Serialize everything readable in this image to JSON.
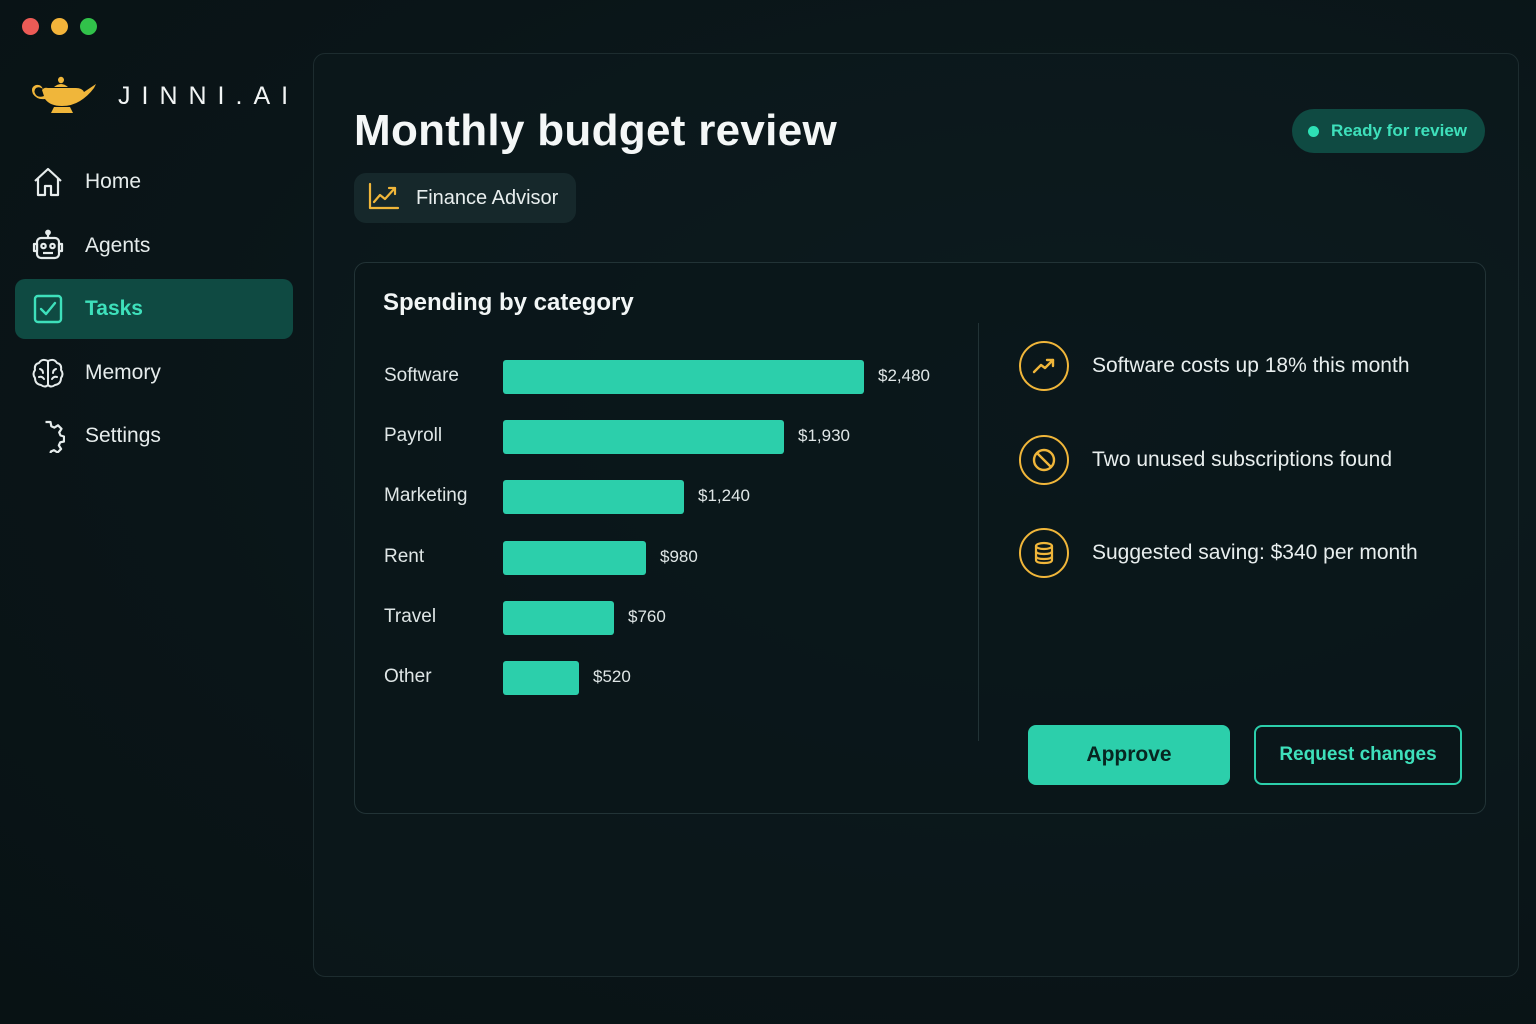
{
  "app": {
    "brand": "JINNI.AI",
    "logo_icon": "magic-lamp-icon",
    "accent_color": "#2ccfab",
    "highlight_color": "#f0b63a"
  },
  "sidebar": {
    "items": [
      {
        "label": "Home",
        "icon": "home-icon",
        "active": false
      },
      {
        "label": "Agents",
        "icon": "robot-icon",
        "active": false
      },
      {
        "label": "Tasks",
        "icon": "checkbox-icon",
        "active": true
      },
      {
        "label": "Memory",
        "icon": "brain-icon",
        "active": false
      },
      {
        "label": "Settings",
        "icon": "gear-icon",
        "active": false
      }
    ]
  },
  "main": {
    "title": "Monthly budget review",
    "agent": {
      "label": "Finance Advisor",
      "icon": "trending-chart-icon"
    },
    "status": {
      "label": "Ready for review",
      "color": "#2ee0b5"
    }
  },
  "card": {
    "title": "Spending by category",
    "insights": [
      {
        "text": "Software costs up 18% this month",
        "icon": "trending-up-icon"
      },
      {
        "text": "Two unused subscriptions found",
        "icon": "blocked-icon"
      },
      {
        "text": "Suggested saving: $340 per month",
        "icon": "coins-stack-icon"
      }
    ],
    "actions": {
      "approve_label": "Approve",
      "request_changes_label": "Request changes"
    }
  },
  "chart_data": {
    "type": "bar",
    "orientation": "horizontal",
    "title": "Spending by category",
    "categories": [
      "Software",
      "Payroll",
      "Marketing",
      "Rent",
      "Travel",
      "Other"
    ],
    "values": [
      2480,
      1930,
      1240,
      980,
      760,
      520
    ],
    "value_labels": [
      "$2,480",
      "$1,930",
      "$1,240",
      "$980",
      "$760",
      "$520"
    ],
    "bar_color": "#2ccfab",
    "grid": false
  }
}
